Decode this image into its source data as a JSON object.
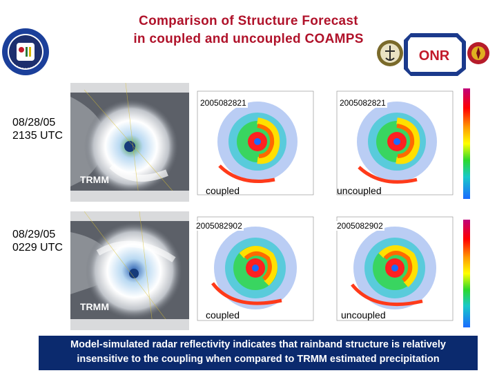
{
  "title": {
    "line1": "Comparison of Structure Forecast",
    "line2": "in coupled and uncoupled COAMPS"
  },
  "logos": {
    "left": "naval-research-lab-seal",
    "right": "office-of-naval-research-logo",
    "right_text": "ONR"
  },
  "rows": [
    {
      "date_line1": "08/28/05",
      "date_line2": "2135 UTC",
      "sat_label": "TRMM",
      "coupled": {
        "date": "2005082821",
        "caption": "coupled"
      },
      "uncoupled": {
        "date": "2005082821",
        "caption": "uncoupled"
      }
    },
    {
      "date_line1": "08/29/05",
      "date_line2": "0229 UTC",
      "sat_label": "TRMM",
      "coupled": {
        "date": "2005082902",
        "caption": "coupled"
      },
      "uncoupled": {
        "date": "2005082902",
        "caption": "uncoupled"
      }
    }
  ],
  "caption": {
    "line1": "Model-simulated radar reflectivity indicates that rainband structure is relatively",
    "line2": "insensitive to the coupling when compared to TRMM estimated precipitation"
  },
  "colors": {
    "title": "#b0122a",
    "caption_bg": "#0b2a6e"
  }
}
